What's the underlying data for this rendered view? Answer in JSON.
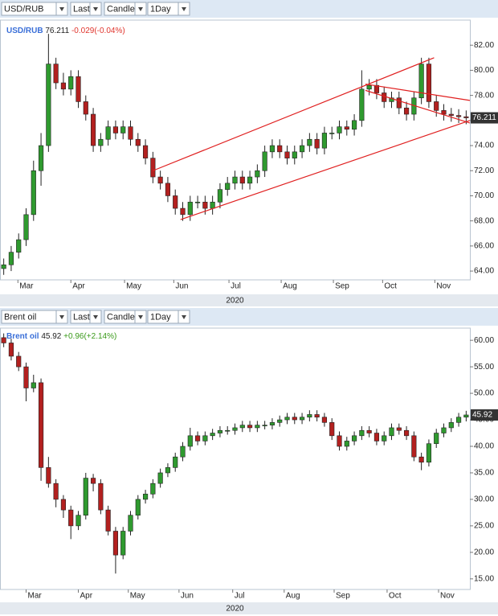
{
  "toolbars": [
    {
      "symbol": "USD/RUB",
      "price_type": "Last",
      "chart_type": "Candle",
      "period": "1Day"
    },
    {
      "symbol": "Brent oil",
      "price_type": "Last",
      "chart_type": "Candle",
      "period": "1Day"
    }
  ],
  "chart_data": [
    {
      "type": "candlestick",
      "symbol": "USD/RUB",
      "change": "-0.029(-0.04%)",
      "change_color": "#e0342c",
      "up_color": "#2f9a2f",
      "down_color": "#b3201f",
      "year_label": "2020",
      "xlim": [
        -0.5,
        62.5
      ],
      "ylim": [
        63.3,
        84.0
      ],
      "xticks": [
        {
          "value": 1.9,
          "label": "Mar"
        },
        {
          "value": 9.0,
          "label": "Apr"
        },
        {
          "value": 16.2,
          "label": "May"
        },
        {
          "value": 22.8,
          "label": "Jun"
        },
        {
          "value": 30.2,
          "label": "Jul"
        },
        {
          "value": 37.2,
          "label": "Aug"
        },
        {
          "value": 44.2,
          "label": "Sep"
        },
        {
          "value": 50.8,
          "label": "Oct"
        },
        {
          "value": 57.8,
          "label": "Nov"
        }
      ],
      "yticks": [
        {
          "value": 64,
          "label": "64.00"
        },
        {
          "value": 66,
          "label": "66.00"
        },
        {
          "value": 68,
          "label": "68.00"
        },
        {
          "value": 70,
          "label": "70.00"
        },
        {
          "value": 72,
          "label": "72.00"
        },
        {
          "value": 74,
          "label": "74.00"
        },
        {
          "value": 76,
          "label": "76.00"
        },
        {
          "value": 78,
          "label": "78.00"
        },
        {
          "value": 80,
          "label": "80.00"
        },
        {
          "value": 82,
          "label": "82.00"
        }
      ],
      "open": [
        64.2,
        64.5,
        65.5,
        66.5,
        68.5,
        72,
        74,
        80.5,
        79,
        78.5,
        79.5,
        77.5,
        76.5,
        74,
        74.5,
        75.5,
        75,
        75.5,
        74.5,
        74,
        73,
        71.5,
        71,
        70,
        69,
        68.5,
        69.5,
        69.5,
        69,
        69.5,
        70.5,
        71,
        71.5,
        71,
        71.5,
        72,
        73.5,
        74,
        73.5,
        73,
        73.5,
        74,
        74.5,
        73.8,
        75,
        75,
        75.5,
        75.3,
        76,
        78.5,
        78.8,
        78.2,
        77.5,
        77.8,
        77,
        76.5,
        77.8,
        80.5,
        77.5,
        76.8,
        76.5,
        76.4,
        76.3
      ],
      "high": [
        65.0,
        66.0,
        67.0,
        69.0,
        72.8,
        75.0,
        82.9,
        81.0,
        79.8,
        80.0,
        80.0,
        78.0,
        77.0,
        75.0,
        76.0,
        76.0,
        76.0,
        76.0,
        75.0,
        74.5,
        73.5,
        72.0,
        71.5,
        70.5,
        69.5,
        70.0,
        70.0,
        70.0,
        70.0,
        71.0,
        71.5,
        72.0,
        72.0,
        72.0,
        72.5,
        74.0,
        74.5,
        74.5,
        74.0,
        74.0,
        74.5,
        75.0,
        75.0,
        75.5,
        75.5,
        76.0,
        76.0,
        76.5,
        80.0,
        79.3,
        79.3,
        78.7,
        78.3,
        78.3,
        77.5,
        78.3,
        81.0,
        81.0,
        78.0,
        77.3,
        77.0,
        76.9,
        76.8
      ],
      "low": [
        63.7,
        64.0,
        65.0,
        66.0,
        68.0,
        70.8,
        73.5,
        78.5,
        78.0,
        78.0,
        77.0,
        76.0,
        73.5,
        73.5,
        74.0,
        74.5,
        74.5,
        74.0,
        73.5,
        72.5,
        71.0,
        70.5,
        69.5,
        68.5,
        68.0,
        68.0,
        69.0,
        68.5,
        68.5,
        69.0,
        70.0,
        70.5,
        70.5,
        70.5,
        71.0,
        71.5,
        73.0,
        73.0,
        72.5,
        72.5,
        73.0,
        73.5,
        73.3,
        73.3,
        74.5,
        74.5,
        74.8,
        74.8,
        75.5,
        78.0,
        77.7,
        77.0,
        77.0,
        76.5,
        76.0,
        76.0,
        77.3,
        77.0,
        76.3,
        76.0,
        75.9,
        75.8,
        75.7
      ],
      "close": [
        64.5,
        65.5,
        66.5,
        68.5,
        72,
        74,
        80.5,
        79,
        78.5,
        79.5,
        77.5,
        76.5,
        74,
        74.5,
        75.5,
        75,
        75.5,
        74.5,
        74,
        73,
        71.5,
        71,
        70,
        69,
        68.5,
        69.5,
        69.5,
        69,
        69.5,
        70.5,
        71,
        71.5,
        71,
        71.5,
        72,
        73.5,
        74,
        73.5,
        73,
        73.5,
        74,
        74.5,
        73.8,
        75,
        75,
        75.5,
        75.3,
        76,
        78.5,
        78.8,
        78.2,
        77.5,
        77.8,
        77,
        76.5,
        77.8,
        80.5,
        77.5,
        76.8,
        76.5,
        76.4,
        76.3,
        76.211
      ],
      "trend_lines": [
        {
          "x": [
            20,
            57.7
          ],
          "y": [
            72.0,
            81.0
          ]
        },
        {
          "x": [
            23.7,
            62.5
          ],
          "y": [
            68.1,
            76.0
          ]
        },
        {
          "x": [
            48.5,
            62.5
          ],
          "y": [
            78.9,
            77.6
          ]
        },
        {
          "x": [
            48.5,
            62.5
          ],
          "y": [
            78.4,
            75.8
          ]
        }
      ],
      "trend_color": "#e02020"
    },
    {
      "type": "candlestick",
      "symbol": "Brent oil",
      "change": "+0.96(+2.14%)",
      "change_color": "#3a9a1a",
      "up_color": "#2f9a2f",
      "down_color": "#b3201f",
      "year_label": "2020",
      "xlim": [
        -0.5,
        62.5
      ],
      "ylim": [
        13.0,
        62.3
      ],
      "xticks": [
        {
          "value": 3.0,
          "label": "Mar"
        },
        {
          "value": 10.0,
          "label": "Apr"
        },
        {
          "value": 16.7,
          "label": "May"
        },
        {
          "value": 23.5,
          "label": "Jun"
        },
        {
          "value": 30.7,
          "label": "Jul"
        },
        {
          "value": 37.6,
          "label": "Aug"
        },
        {
          "value": 44.3,
          "label": "Sep"
        },
        {
          "value": 51.4,
          "label": "Oct"
        },
        {
          "value": 58.3,
          "label": "Nov"
        }
      ],
      "yticks": [
        {
          "value": 15,
          "label": "15.00"
        },
        {
          "value": 20,
          "label": "20.00"
        },
        {
          "value": 25,
          "label": "25.00"
        },
        {
          "value": 30,
          "label": "30.00"
        },
        {
          "value": 35,
          "label": "35.00"
        },
        {
          "value": 40,
          "label": "40.00"
        },
        {
          "value": 45,
          "label": "45.00"
        },
        {
          "value": 50,
          "label": "50.00"
        },
        {
          "value": 55,
          "label": "55.00"
        },
        {
          "value": 60,
          "label": "60.00"
        }
      ],
      "open": [
        60.5,
        59.5,
        57,
        55,
        51,
        52,
        36,
        33,
        30,
        28,
        25,
        27,
        34,
        33,
        28,
        24,
        19.5,
        24,
        27,
        30,
        31,
        33,
        35,
        36,
        38,
        40,
        42,
        41,
        42,
        42.5,
        43,
        43,
        43.5,
        44,
        43.5,
        44,
        44,
        44.5,
        45,
        45.5,
        45,
        45.5,
        46,
        45.5,
        44.5,
        42,
        40,
        41,
        42,
        43,
        42.5,
        41,
        42,
        43.5,
        43,
        42,
        38,
        37,
        40.5,
        42.5,
        43.5,
        44.5,
        45.5
      ],
      "high": [
        61.3,
        60.3,
        57.8,
        55.8,
        53.5,
        52.8,
        38.0,
        33.8,
        30.8,
        28.8,
        27.8,
        35.0,
        34.8,
        33.8,
        28.8,
        24.8,
        24.8,
        27.8,
        30.8,
        31.8,
        33.8,
        35.8,
        36.8,
        38.8,
        40.8,
        43.5,
        42.8,
        42.8,
        43.3,
        43.8,
        43.8,
        44.3,
        44.8,
        44.8,
        44.8,
        44.8,
        45.3,
        45.8,
        46.3,
        46.3,
        46.3,
        46.8,
        46.8,
        46.3,
        45.3,
        42.8,
        41.8,
        42.8,
        43.8,
        43.8,
        43.3,
        42.8,
        44.3,
        44.3,
        43.8,
        42.8,
        38.8,
        41.3,
        43.3,
        44.3,
        45.3,
        46.3,
        46.7
      ],
      "low": [
        58.7,
        56.2,
        54.2,
        48.5,
        50.2,
        33.5,
        32.2,
        28.5,
        26.5,
        22.5,
        24.2,
        26.2,
        31.5,
        27.2,
        23.2,
        16.0,
        18.7,
        23.2,
        26.2,
        29.2,
        30.2,
        32.2,
        34.2,
        35.2,
        37.2,
        39.2,
        40.2,
        40.2,
        41.2,
        41.7,
        42.2,
        42.2,
        42.7,
        42.7,
        42.7,
        43.2,
        43.2,
        43.7,
        44.2,
        44.2,
        44.2,
        44.7,
        44.7,
        43.7,
        41.2,
        39.2,
        39.2,
        40.2,
        41.2,
        41.7,
        40.2,
        40.2,
        41.2,
        42.2,
        41.2,
        37.2,
        35.5,
        36.2,
        39.7,
        41.7,
        42.7,
        43.7,
        44.7
      ],
      "close": [
        59.5,
        57,
        55,
        51,
        52,
        36,
        33,
        30,
        28,
        25,
        27,
        34,
        33,
        28,
        24,
        19.5,
        24,
        27,
        30,
        31,
        33,
        35,
        36,
        38,
        40,
        42,
        41,
        42,
        42.5,
        43,
        43,
        43.5,
        44,
        43.5,
        44,
        44,
        44.5,
        45,
        45.5,
        45,
        45.5,
        46,
        45.5,
        44.5,
        42,
        40,
        41,
        42,
        43,
        42.5,
        41,
        42,
        43.5,
        43,
        42,
        38,
        37,
        40.5,
        42.5,
        43.5,
        44.5,
        45.5,
        45.92
      ]
    }
  ]
}
